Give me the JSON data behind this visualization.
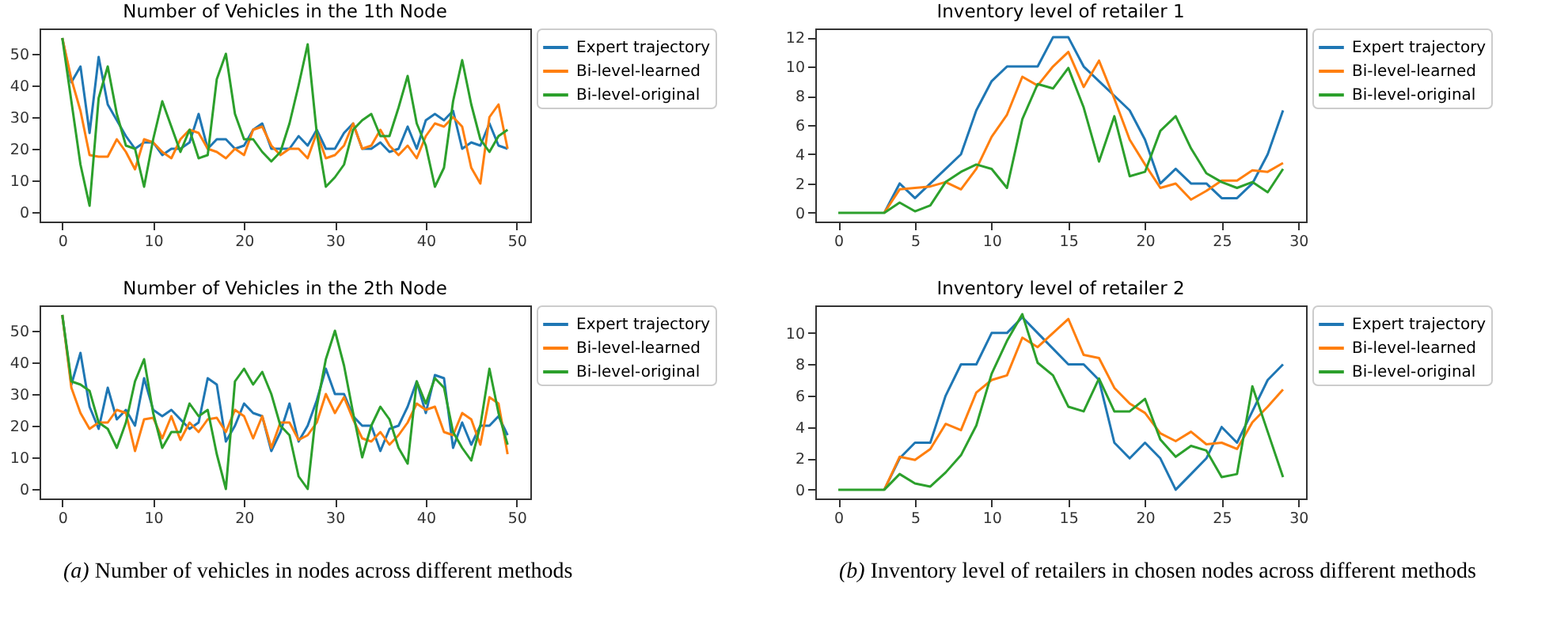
{
  "chart_data": [
    {
      "type": "line",
      "title": "Number of Vehicles in the 1th Node",
      "x": [
        0,
        1,
        2,
        3,
        4,
        5,
        6,
        7,
        8,
        9,
        10,
        11,
        12,
        13,
        14,
        15,
        16,
        17,
        18,
        19,
        20,
        21,
        22,
        23,
        24,
        25,
        26,
        27,
        28,
        29,
        30,
        31,
        32,
        33,
        34,
        35,
        36,
        37,
        38,
        39,
        40,
        41,
        42,
        43,
        44,
        45,
        46,
        47,
        48,
        49
      ],
      "xlim": [
        -2.5,
        51.5
      ],
      "ylim": [
        -3,
        58
      ],
      "xticks": [
        0,
        10,
        20,
        30,
        40,
        50
      ],
      "yticks": [
        0,
        10,
        20,
        30,
        40,
        50
      ],
      "legend": "right",
      "series": [
        {
          "name": "Expert trajectory",
          "color": "#1f77b4",
          "values": [
            55,
            41,
            46,
            25,
            49,
            34,
            29,
            24,
            20,
            22,
            22,
            18,
            20,
            20,
            22,
            31,
            20,
            23,
            23,
            20,
            21,
            26,
            28,
            20,
            20,
            20,
            24,
            21,
            26,
            20,
            20,
            25,
            28,
            20,
            20,
            22,
            19,
            20,
            27,
            20,
            29,
            31,
            29,
            32,
            20,
            22,
            21,
            28,
            21,
            20
          ]
        },
        {
          "name": "Bi-level-learned",
          "color": "#ff7f0e",
          "values": [
            55,
            42,
            32,
            18,
            17.5,
            17.5,
            23,
            19,
            13.5,
            23,
            22,
            19,
            17,
            23,
            26,
            25,
            20,
            19,
            17,
            20,
            18,
            26,
            27,
            21,
            18,
            20,
            20,
            17,
            25,
            17,
            18,
            21,
            28,
            20,
            21,
            26,
            21,
            18,
            21,
            17,
            24,
            28,
            27,
            30,
            27,
            14,
            9,
            30,
            34,
            20
          ]
        },
        {
          "name": "Bi-level-original",
          "color": "#2ca02c",
          "values": [
            55,
            35,
            15,
            2,
            36,
            46,
            31,
            21,
            20,
            8,
            23,
            35,
            27,
            19,
            26,
            17,
            18,
            42,
            50,
            31,
            23,
            23,
            19,
            16,
            19,
            28,
            40,
            53,
            25,
            8,
            11,
            15,
            26,
            29,
            31,
            24,
            24,
            33,
            43,
            28,
            21,
            8,
            14,
            35,
            48,
            34,
            23,
            19,
            24,
            26
          ]
        }
      ]
    },
    {
      "type": "line",
      "title": "Number of Vehicles in the 2th Node",
      "x": [
        0,
        1,
        2,
        3,
        4,
        5,
        6,
        7,
        8,
        9,
        10,
        11,
        12,
        13,
        14,
        15,
        16,
        17,
        18,
        19,
        20,
        21,
        22,
        23,
        24,
        25,
        26,
        27,
        28,
        29,
        30,
        31,
        32,
        33,
        34,
        35,
        36,
        37,
        38,
        39,
        40,
        41,
        42,
        43,
        44,
        45,
        46,
        47,
        48,
        49
      ],
      "xlim": [
        -2.5,
        51.5
      ],
      "ylim": [
        -3,
        58
      ],
      "xticks": [
        0,
        10,
        20,
        30,
        40,
        50
      ],
      "yticks": [
        0,
        10,
        20,
        30,
        40,
        50
      ],
      "legend": "right",
      "annotations": [
        "(a) Number of vehicles in nodes across different methods"
      ],
      "series": [
        {
          "name": "Expert trajectory",
          "color": "#1f77b4",
          "values": [
            55,
            33,
            43,
            26,
            19,
            32,
            22,
            25,
            20,
            35,
            25,
            23,
            25,
            22,
            19,
            21,
            35,
            33,
            15,
            20,
            27,
            24,
            23,
            12,
            18,
            27,
            15,
            20,
            28,
            38,
            30,
            30,
            23,
            20,
            20,
            12,
            19,
            20,
            26,
            34,
            24,
            36,
            35,
            13,
            21,
            14,
            20,
            20,
            23,
            17
          ]
        },
        {
          "name": "Bi-level-learned",
          "color": "#ff7f0e",
          "values": [
            55,
            32,
            24,
            19,
            21,
            21,
            25,
            24,
            12,
            22,
            22.5,
            16,
            23,
            15.5,
            21,
            18,
            22,
            22.5,
            18,
            25,
            23,
            16,
            23,
            13,
            21,
            21,
            15.5,
            17,
            21,
            30,
            24,
            29,
            22,
            16,
            15,
            18,
            14,
            17,
            21,
            27,
            25,
            26,
            18,
            17,
            24,
            22,
            14,
            29,
            27,
            11
          ]
        },
        {
          "name": "Bi-level-original",
          "color": "#2ca02c",
          "values": [
            55,
            34,
            33,
            31,
            21,
            19,
            13,
            21,
            34,
            41,
            24,
            13,
            18,
            18,
            27,
            23,
            25,
            11,
            0,
            34,
            38,
            33,
            37,
            30,
            20,
            17,
            4,
            0,
            26,
            41,
            50,
            39,
            24,
            10,
            20,
            26,
            22,
            13,
            8,
            34,
            27,
            35,
            32,
            18,
            13,
            9,
            20,
            38,
            24,
            14
          ]
        }
      ]
    },
    {
      "type": "line",
      "title": "Inventory level of retailer 1",
      "x": [
        0,
        1,
        2,
        3,
        4,
        5,
        6,
        7,
        8,
        9,
        10,
        11,
        12,
        13,
        14,
        15,
        16,
        17,
        18,
        19,
        20,
        21,
        22,
        23,
        24,
        25,
        26,
        27,
        28,
        29
      ],
      "xlim": [
        -1.5,
        30.5
      ],
      "ylim": [
        -0.6,
        12.6
      ],
      "xticks": [
        0,
        5,
        10,
        15,
        20,
        25,
        30
      ],
      "yticks": [
        0,
        2,
        4,
        6,
        8,
        10,
        12
      ],
      "legend": "right",
      "series": [
        {
          "name": "Expert trajectory",
          "color": "#1f77b4",
          "values": [
            null,
            null,
            null,
            0,
            2,
            1,
            2,
            3,
            4,
            7,
            9,
            10,
            10,
            10,
            12,
            12,
            10,
            9,
            8,
            7,
            5,
            2,
            3,
            2,
            2,
            1,
            1,
            2,
            4,
            7
          ]
        },
        {
          "name": "Bi-level-learned",
          "color": "#ff7f0e",
          "values": [
            null,
            null,
            null,
            0,
            1.6,
            1.7,
            1.8,
            2.1,
            1.6,
            3,
            5.2,
            6.7,
            9.3,
            8.7,
            10,
            11,
            8.6,
            10.4,
            7.8,
            5,
            3.3,
            1.7,
            2,
            0.9,
            1.5,
            2.2,
            2.2,
            2.9,
            2.8,
            3.4
          ]
        },
        {
          "name": "Bi-level-original",
          "color": "#2ca02c",
          "values": [
            0,
            0,
            0,
            0,
            0.7,
            0.1,
            0.5,
            2.1,
            2.8,
            3.3,
            3,
            1.7,
            6.4,
            8.8,
            8.5,
            9.9,
            7.2,
            3.5,
            6.6,
            2.5,
            2.8,
            5.6,
            6.6,
            4.4,
            2.7,
            2.1,
            1.7,
            2.1,
            1.4,
            3
          ]
        }
      ]
    },
    {
      "type": "line",
      "title": "Inventory level of retailer 2",
      "x": [
        0,
        1,
        2,
        3,
        4,
        5,
        6,
        7,
        8,
        9,
        10,
        11,
        12,
        13,
        14,
        15,
        16,
        17,
        18,
        19,
        20,
        21,
        22,
        23,
        24,
        25,
        26,
        27,
        28,
        29
      ],
      "xlim": [
        -1.5,
        30.5
      ],
      "ylim": [
        -0.56,
        11.76
      ],
      "xticks": [
        0,
        5,
        10,
        15,
        20,
        25,
        30
      ],
      "yticks": [
        0,
        2,
        4,
        6,
        8,
        10
      ],
      "legend": "right",
      "annotations": [
        "(b) Inventory level of retailers in chosen nodes across different methods"
      ],
      "series": [
        {
          "name": "Expert trajectory",
          "color": "#1f77b4",
          "values": [
            null,
            null,
            null,
            0,
            2,
            3,
            3,
            6,
            8,
            8,
            10,
            10,
            11,
            10,
            9,
            8,
            8,
            7,
            3,
            2,
            3,
            2,
            0,
            1,
            2,
            4,
            3,
            5,
            7,
            8
          ]
        },
        {
          "name": "Bi-level-learned",
          "color": "#ff7f0e",
          "values": [
            null,
            null,
            null,
            0,
            2.1,
            1.9,
            2.6,
            4.2,
            3.8,
            6.2,
            7,
            7.3,
            9.7,
            9.1,
            10,
            10.9,
            8.6,
            8.4,
            6.5,
            5.5,
            4.9,
            3.6,
            3.1,
            3.7,
            2.9,
            3,
            2.6,
            4.3,
            5.3,
            6.4
          ]
        },
        {
          "name": "Bi-level-original",
          "color": "#2ca02c",
          "values": [
            0,
            0,
            0,
            0,
            1,
            0.4,
            0.2,
            1.1,
            2.2,
            4.1,
            7.4,
            9.5,
            11.2,
            8.1,
            7.3,
            5.3,
            5,
            7.1,
            5,
            5,
            5.8,
            3.2,
            2.1,
            2.8,
            2.5,
            0.8,
            1,
            6.6,
            3.7,
            0.8
          ]
        }
      ]
    }
  ]
}
